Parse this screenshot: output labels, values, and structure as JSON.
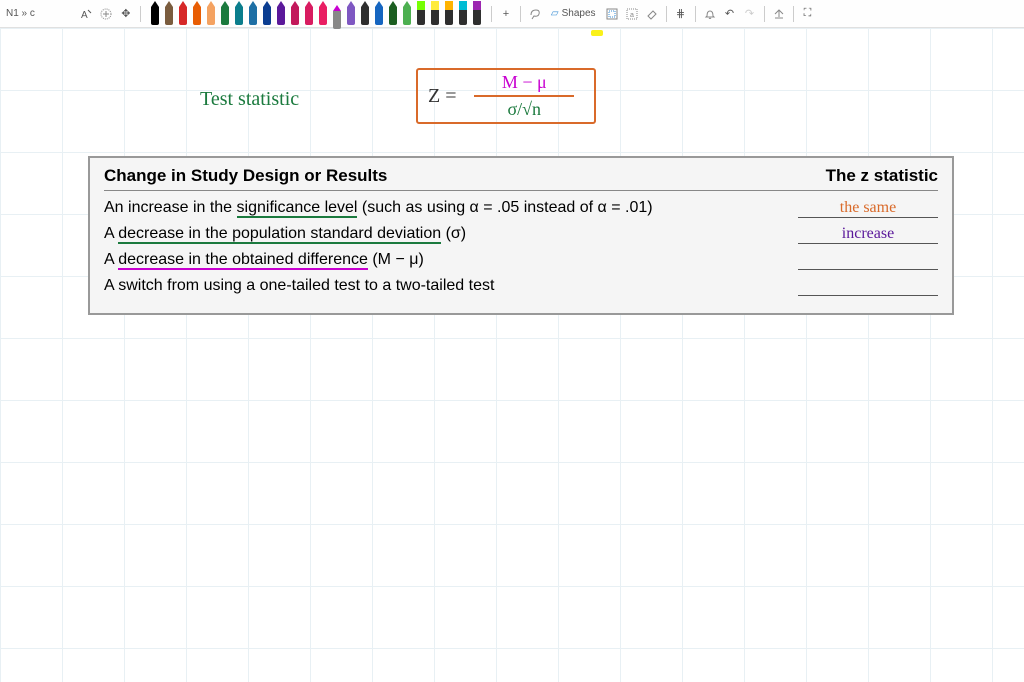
{
  "breadcrumb": "N1 » c",
  "toolbar": {
    "text_tool": "⌨",
    "add_tool": "⊕",
    "move_tool": "✥",
    "plus": "+",
    "lasso": "ʃ",
    "shapes_label": "Shapes",
    "shapes_icon": "▱",
    "frame": "⬚",
    "search": "🔍",
    "eraser": "◇",
    "grid": "⋕",
    "bell": "🔔",
    "undo": "↶",
    "redo": "↷",
    "share": "⇪",
    "fullscreen": "⛶"
  },
  "pens": [
    {
      "color": "#000000",
      "tip": "#000000",
      "type": "pen"
    },
    {
      "color": "#7a5c3e",
      "tip": "#7a5c3e",
      "type": "pen"
    },
    {
      "color": "#d62828",
      "tip": "#d62828",
      "type": "pen"
    },
    {
      "color": "#e85d04",
      "tip": "#e85d04",
      "type": "pen"
    },
    {
      "color": "#f4a261",
      "tip": "#f4a261",
      "type": "pen"
    },
    {
      "color": "#1b7a3e",
      "tip": "#1b7a3e",
      "type": "pen"
    },
    {
      "color": "#0a7d8c",
      "tip": "#0a7d8c",
      "type": "pen"
    },
    {
      "color": "#1d6fa5",
      "tip": "#1d6fa5",
      "type": "pen"
    },
    {
      "color": "#0b3d91",
      "tip": "#0b3d91",
      "type": "pen"
    },
    {
      "color": "#5a189a",
      "tip": "#5a189a",
      "type": "pen"
    },
    {
      "color": "#c2185b",
      "tip": "#c2185b",
      "type": "pen"
    },
    {
      "color": "#d81b60",
      "tip": "#d81b60",
      "type": "pen"
    },
    {
      "color": "#e91e63",
      "tip": "#e91e63",
      "type": "pen"
    },
    {
      "color": "#888888",
      "tip": "#c800d0",
      "type": "active"
    },
    {
      "color": "#7e57c2",
      "tip": "#7e57c2",
      "type": "pen"
    },
    {
      "color": "#2e2e2e",
      "tip": "#2e2e2e",
      "type": "pen"
    },
    {
      "color": "#1565c0",
      "tip": "#1565c0",
      "type": "pen"
    },
    {
      "color": "#1b5e20",
      "tip": "#1b5e20",
      "type": "pen"
    },
    {
      "color": "#4caf50",
      "tip": "#4caf50",
      "type": "pen"
    },
    {
      "color": "#76ff03",
      "tip": "#76ff03",
      "type": "highlighter"
    },
    {
      "color": "#ffeb3b",
      "tip": "#ffeb3b",
      "type": "highlighter"
    },
    {
      "color": "#ffb300",
      "tip": "#ffb300",
      "type": "highlighter"
    },
    {
      "color": "#00bcd4",
      "tip": "#00bcd4",
      "type": "highlighter"
    },
    {
      "color": "#9c27b0",
      "tip": "#9c27b0",
      "type": "highlighter"
    }
  ],
  "annotation": {
    "label": "Test  statistic",
    "label_color": "#1b7a3e",
    "z_eq": "Z =",
    "numerator": "M − μ",
    "denominator": "σ/√n",
    "box_border": "#d96a2a",
    "num_color": "#c800d0",
    "den_color": "#1b7a3e"
  },
  "table": {
    "header_left": "Change in Study Design or Results",
    "header_right": "The z statistic",
    "rows": [
      {
        "text_pre": "An increase in the ",
        "text_underlined": "significance level",
        "underline_color": "#1b7a3e",
        "text_post": " (such as using α = .05 instead of α = .01)",
        "answer": "the same",
        "answer_color": "#d96a2a"
      },
      {
        "text_pre": "A ",
        "text_underlined": "decrease in the population standard deviation",
        "underline_color": "#1b7a3e",
        "text_post": " (σ)",
        "answer": "increase",
        "answer_color": "#5a189a"
      },
      {
        "text_pre": "A ",
        "text_underlined": "decrease in the obtained difference",
        "underline_color": "#c800d0",
        "text_post": " (M − μ)",
        "answer": "",
        "answer_color": ""
      },
      {
        "text_pre": "A switch from using a one-tailed test to a two-tailed test",
        "text_underlined": "",
        "underline_color": "",
        "text_post": "",
        "answer": "",
        "answer_color": ""
      }
    ]
  },
  "style": {
    "grid_color": "#e8f0f4",
    "table_bg": "#f5f5f5",
    "table_border": "#999999"
  }
}
